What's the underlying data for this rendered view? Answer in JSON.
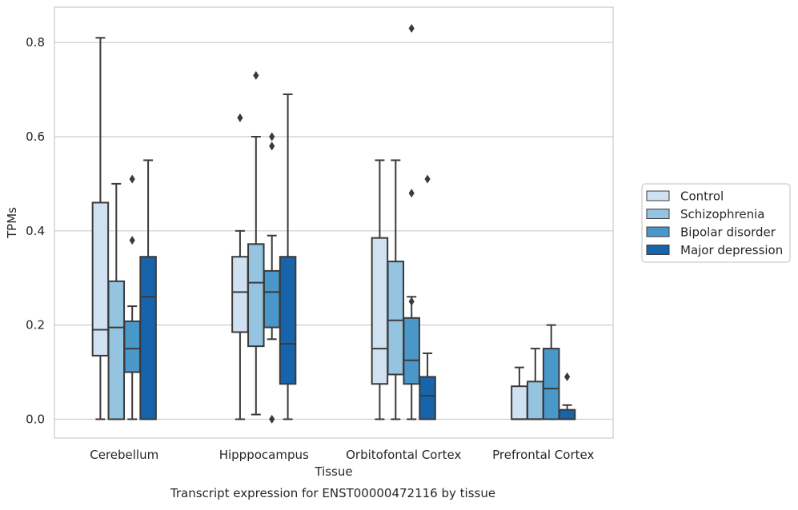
{
  "chart_data": {
    "type": "boxplot",
    "title": "Transcript expression for ENST00000472116 by tissue",
    "xlabel": "Tissue",
    "ylabel": "TPMs",
    "ylim": [
      -0.04,
      0.875
    ],
    "yticks": [
      0.0,
      0.2,
      0.4,
      0.6,
      0.8
    ],
    "ytick_labels": [
      "0.0",
      "0.2",
      "0.4",
      "0.6",
      "0.8"
    ],
    "grid": true,
    "legend_position": "right",
    "categories": [
      "Cerebellum",
      "Hipppocampus",
      "Orbitofontal Cortex",
      "Prefrontal Cortex"
    ],
    "series": [
      {
        "name": "Control",
        "color": "#d0e1f2",
        "boxes": [
          {
            "whislo": 0.0,
            "q1": 0.135,
            "med": 0.19,
            "q3": 0.46,
            "whishi": 0.81,
            "fliers": []
          },
          {
            "whislo": 0.0,
            "q1": 0.185,
            "med": 0.27,
            "q3": 0.345,
            "whishi": 0.4,
            "fliers": [
              0.64
            ]
          },
          {
            "whislo": 0.0,
            "q1": 0.075,
            "med": 0.15,
            "q3": 0.385,
            "whishi": 0.55,
            "fliers": []
          },
          {
            "whislo": 0.0,
            "q1": 0.0,
            "med": 0.0,
            "q3": 0.07,
            "whishi": 0.11,
            "fliers": []
          }
        ]
      },
      {
        "name": "Schizophrenia",
        "color": "#94c4df",
        "boxes": [
          {
            "whislo": 0.0,
            "q1": 0.0,
            "med": 0.195,
            "q3": 0.293,
            "whishi": 0.5,
            "fliers": []
          },
          {
            "whislo": 0.01,
            "q1": 0.155,
            "med": 0.29,
            "q3": 0.372,
            "whishi": 0.6,
            "fliers": [
              0.73
            ]
          },
          {
            "whislo": 0.0,
            "q1": 0.095,
            "med": 0.21,
            "q3": 0.335,
            "whishi": 0.55,
            "fliers": []
          },
          {
            "whislo": 0.0,
            "q1": 0.0,
            "med": 0.0,
            "q3": 0.08,
            "whishi": 0.15,
            "fliers": []
          }
        ]
      },
      {
        "name": "Bipolar disorder",
        "color": "#4a98c9",
        "boxes": [
          {
            "whislo": 0.0,
            "q1": 0.1,
            "med": 0.15,
            "q3": 0.208,
            "whishi": 0.24,
            "fliers": [
              0.38,
              0.51
            ]
          },
          {
            "whislo": 0.17,
            "q1": 0.195,
            "med": 0.27,
            "q3": 0.315,
            "whishi": 0.39,
            "fliers": [
              0.0,
              0.58,
              0.6
            ]
          },
          {
            "whislo": 0.0,
            "q1": 0.075,
            "med": 0.125,
            "q3": 0.215,
            "whishi": 0.26,
            "fliers": [
              0.25,
              0.48,
              0.83
            ]
          },
          {
            "whislo": 0.0,
            "q1": 0.0,
            "med": 0.065,
            "q3": 0.15,
            "whishi": 0.2,
            "fliers": []
          }
        ]
      },
      {
        "name": "Major depression",
        "color": "#1764ab",
        "boxes": [
          {
            "whislo": 0.0,
            "q1": 0.0,
            "med": 0.26,
            "q3": 0.345,
            "whishi": 0.55,
            "fliers": []
          },
          {
            "whislo": 0.0,
            "q1": 0.075,
            "med": 0.16,
            "q3": 0.345,
            "whishi": 0.69,
            "fliers": []
          },
          {
            "whislo": 0.0,
            "q1": 0.0,
            "med": 0.05,
            "q3": 0.09,
            "whishi": 0.14,
            "fliers": [
              0.51
            ]
          },
          {
            "whislo": 0.0,
            "q1": 0.0,
            "med": 0.0,
            "q3": 0.02,
            "whishi": 0.03,
            "fliers": [
              0.09
            ]
          }
        ]
      }
    ]
  }
}
